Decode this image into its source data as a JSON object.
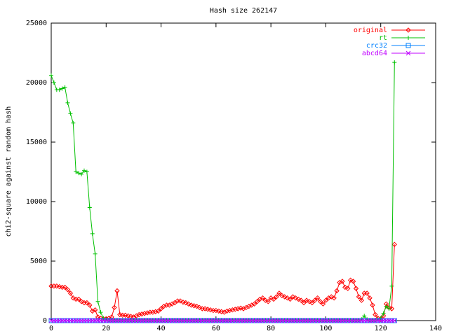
{
  "chart_data": {
    "type": "line",
    "title": "Hash size 262147",
    "y_label": "chi2-square against random hash",
    "xlim": [
      0,
      140
    ],
    "xticks": [
      0,
      20,
      40,
      60,
      80,
      100,
      120,
      140
    ],
    "ylim": [
      0,
      25000
    ],
    "yticks": [
      0,
      5000,
      10000,
      15000,
      20000,
      25000
    ],
    "grid": false,
    "legend": "top-right",
    "x": [
      0,
      1,
      2,
      3,
      4,
      5,
      6,
      7,
      8,
      9,
      10,
      11,
      12,
      13,
      14,
      15,
      16,
      17,
      18,
      19,
      20,
      21,
      22,
      23,
      24,
      25,
      26,
      27,
      28,
      29,
      30,
      31,
      32,
      33,
      34,
      35,
      36,
      37,
      38,
      39,
      40,
      41,
      42,
      43,
      44,
      45,
      46,
      47,
      48,
      49,
      50,
      51,
      52,
      53,
      54,
      55,
      56,
      57,
      58,
      59,
      60,
      61,
      62,
      63,
      64,
      65,
      66,
      67,
      68,
      69,
      70,
      71,
      72,
      73,
      74,
      75,
      76,
      77,
      78,
      79,
      80,
      81,
      82,
      83,
      84,
      85,
      86,
      87,
      88,
      89,
      90,
      91,
      92,
      93,
      94,
      95,
      96,
      97,
      98,
      99,
      100,
      101,
      102,
      103,
      104,
      105,
      106,
      107,
      108,
      109,
      110,
      111,
      112,
      113,
      114,
      115,
      116,
      117,
      118,
      119,
      120,
      121,
      122,
      123,
      124,
      125
    ],
    "series": [
      {
        "name": "original",
        "color": "#ff0000",
        "marker": "diamond",
        "values": [
          2900,
          2900,
          2900,
          2850,
          2800,
          2800,
          2600,
          2300,
          1900,
          1800,
          1800,
          1600,
          1500,
          1500,
          1300,
          800,
          900,
          300,
          200,
          150,
          150,
          200,
          300,
          1100,
          2500,
          500,
          450,
          450,
          400,
          350,
          300,
          400,
          500,
          550,
          600,
          650,
          700,
          700,
          750,
          800,
          1000,
          1200,
          1300,
          1300,
          1400,
          1500,
          1650,
          1650,
          1550,
          1500,
          1400,
          1300,
          1250,
          1200,
          1100,
          1000,
          1000,
          950,
          900,
          850,
          850,
          800,
          750,
          700,
          800,
          850,
          900,
          950,
          1000,
          1050,
          1000,
          1100,
          1200,
          1300,
          1400,
          1600,
          1800,
          1900,
          1700,
          1600,
          1900,
          1800,
          2000,
          2300,
          2100,
          2000,
          1900,
          1800,
          2000,
          1900,
          1800,
          1700,
          1500,
          1700,
          1600,
          1500,
          1700,
          1900,
          1600,
          1400,
          1700,
          1900,
          2000,
          1900,
          2500,
          3200,
          3300,
          2800,
          2700,
          3400,
          3300,
          2700,
          2000,
          1700,
          2300,
          2300,
          1900,
          1300,
          500,
          200,
          100,
          400,
          1400,
          1100,
          1000,
          6400
        ]
      },
      {
        "name": "rt",
        "color": "#00c000",
        "marker": "plus",
        "values": [
          20600,
          20000,
          19400,
          19400,
          19500,
          19600,
          18300,
          17400,
          16600,
          12500,
          12400,
          12300,
          12600,
          12500,
          9500,
          7300,
          5600,
          1600,
          700,
          200,
          100,
          50,
          50,
          50,
          50,
          50,
          50,
          50,
          50,
          50,
          50,
          50,
          50,
          50,
          50,
          50,
          50,
          50,
          50,
          50,
          50,
          50,
          50,
          50,
          50,
          50,
          50,
          50,
          50,
          50,
          50,
          50,
          50,
          50,
          50,
          50,
          50,
          50,
          50,
          50,
          50,
          50,
          50,
          50,
          50,
          50,
          50,
          50,
          50,
          50,
          50,
          50,
          50,
          50,
          50,
          50,
          50,
          50,
          50,
          50,
          50,
          50,
          50,
          50,
          50,
          50,
          50,
          50,
          50,
          50,
          50,
          50,
          50,
          50,
          50,
          50,
          50,
          50,
          50,
          50,
          50,
          50,
          50,
          50,
          50,
          50,
          50,
          50,
          50,
          50,
          50,
          50,
          50,
          100,
          400,
          100,
          50,
          50,
          50,
          100,
          200,
          600,
          1200,
          1000,
          2900,
          21700
        ]
      },
      {
        "name": "crc32",
        "color": "#0080ff",
        "marker": "square",
        "values": [
          0,
          0,
          0,
          0,
          0,
          0,
          0,
          0,
          0,
          0,
          0,
          0,
          0,
          0,
          0,
          0,
          0,
          0,
          0,
          0,
          0,
          0,
          0,
          0,
          0,
          0,
          0,
          0,
          0,
          0,
          0,
          0,
          0,
          0,
          0,
          0,
          0,
          0,
          0,
          0,
          0,
          0,
          0,
          0,
          0,
          0,
          0,
          0,
          0,
          0,
          0,
          0,
          0,
          0,
          0,
          0,
          0,
          0,
          0,
          0,
          0,
          0,
          0,
          0,
          0,
          0,
          0,
          0,
          0,
          0,
          0,
          0,
          0,
          0,
          0,
          0,
          0,
          0,
          0,
          0,
          0,
          0,
          0,
          0,
          0,
          0,
          0,
          0,
          0,
          0,
          0,
          0,
          0,
          0,
          0,
          0,
          0,
          0,
          0,
          0,
          0,
          0,
          0,
          0,
          0,
          0,
          0,
          0,
          0,
          0,
          0,
          0,
          0,
          0,
          0,
          0,
          0,
          0,
          0,
          0,
          0,
          0,
          0,
          0,
          0,
          0
        ]
      },
      {
        "name": "abcd64",
        "color": "#c000ff",
        "marker": "cross",
        "values": [
          0,
          0,
          0,
          0,
          0,
          0,
          0,
          0,
          0,
          0,
          0,
          0,
          0,
          0,
          0,
          0,
          0,
          0,
          0,
          0,
          0,
          0,
          0,
          0,
          0,
          0,
          0,
          0,
          0,
          0,
          0,
          0,
          0,
          0,
          0,
          0,
          0,
          0,
          0,
          0,
          0,
          0,
          0,
          0,
          0,
          0,
          0,
          0,
          0,
          0,
          0,
          0,
          0,
          0,
          0,
          0,
          0,
          0,
          0,
          0,
          0,
          0,
          0,
          0,
          0,
          0,
          0,
          0,
          0,
          0,
          0,
          0,
          0,
          0,
          0,
          0,
          0,
          0,
          0,
          0,
          0,
          0,
          0,
          0,
          0,
          0,
          0,
          0,
          0,
          0,
          0,
          0,
          0,
          0,
          0,
          0,
          0,
          0,
          0,
          0,
          0,
          0,
          0,
          0,
          0,
          0,
          0,
          0,
          0,
          0,
          0,
          0,
          0,
          0,
          0,
          0,
          0,
          0,
          0,
          0,
          0,
          0,
          0,
          0,
          0,
          0
        ]
      }
    ]
  }
}
